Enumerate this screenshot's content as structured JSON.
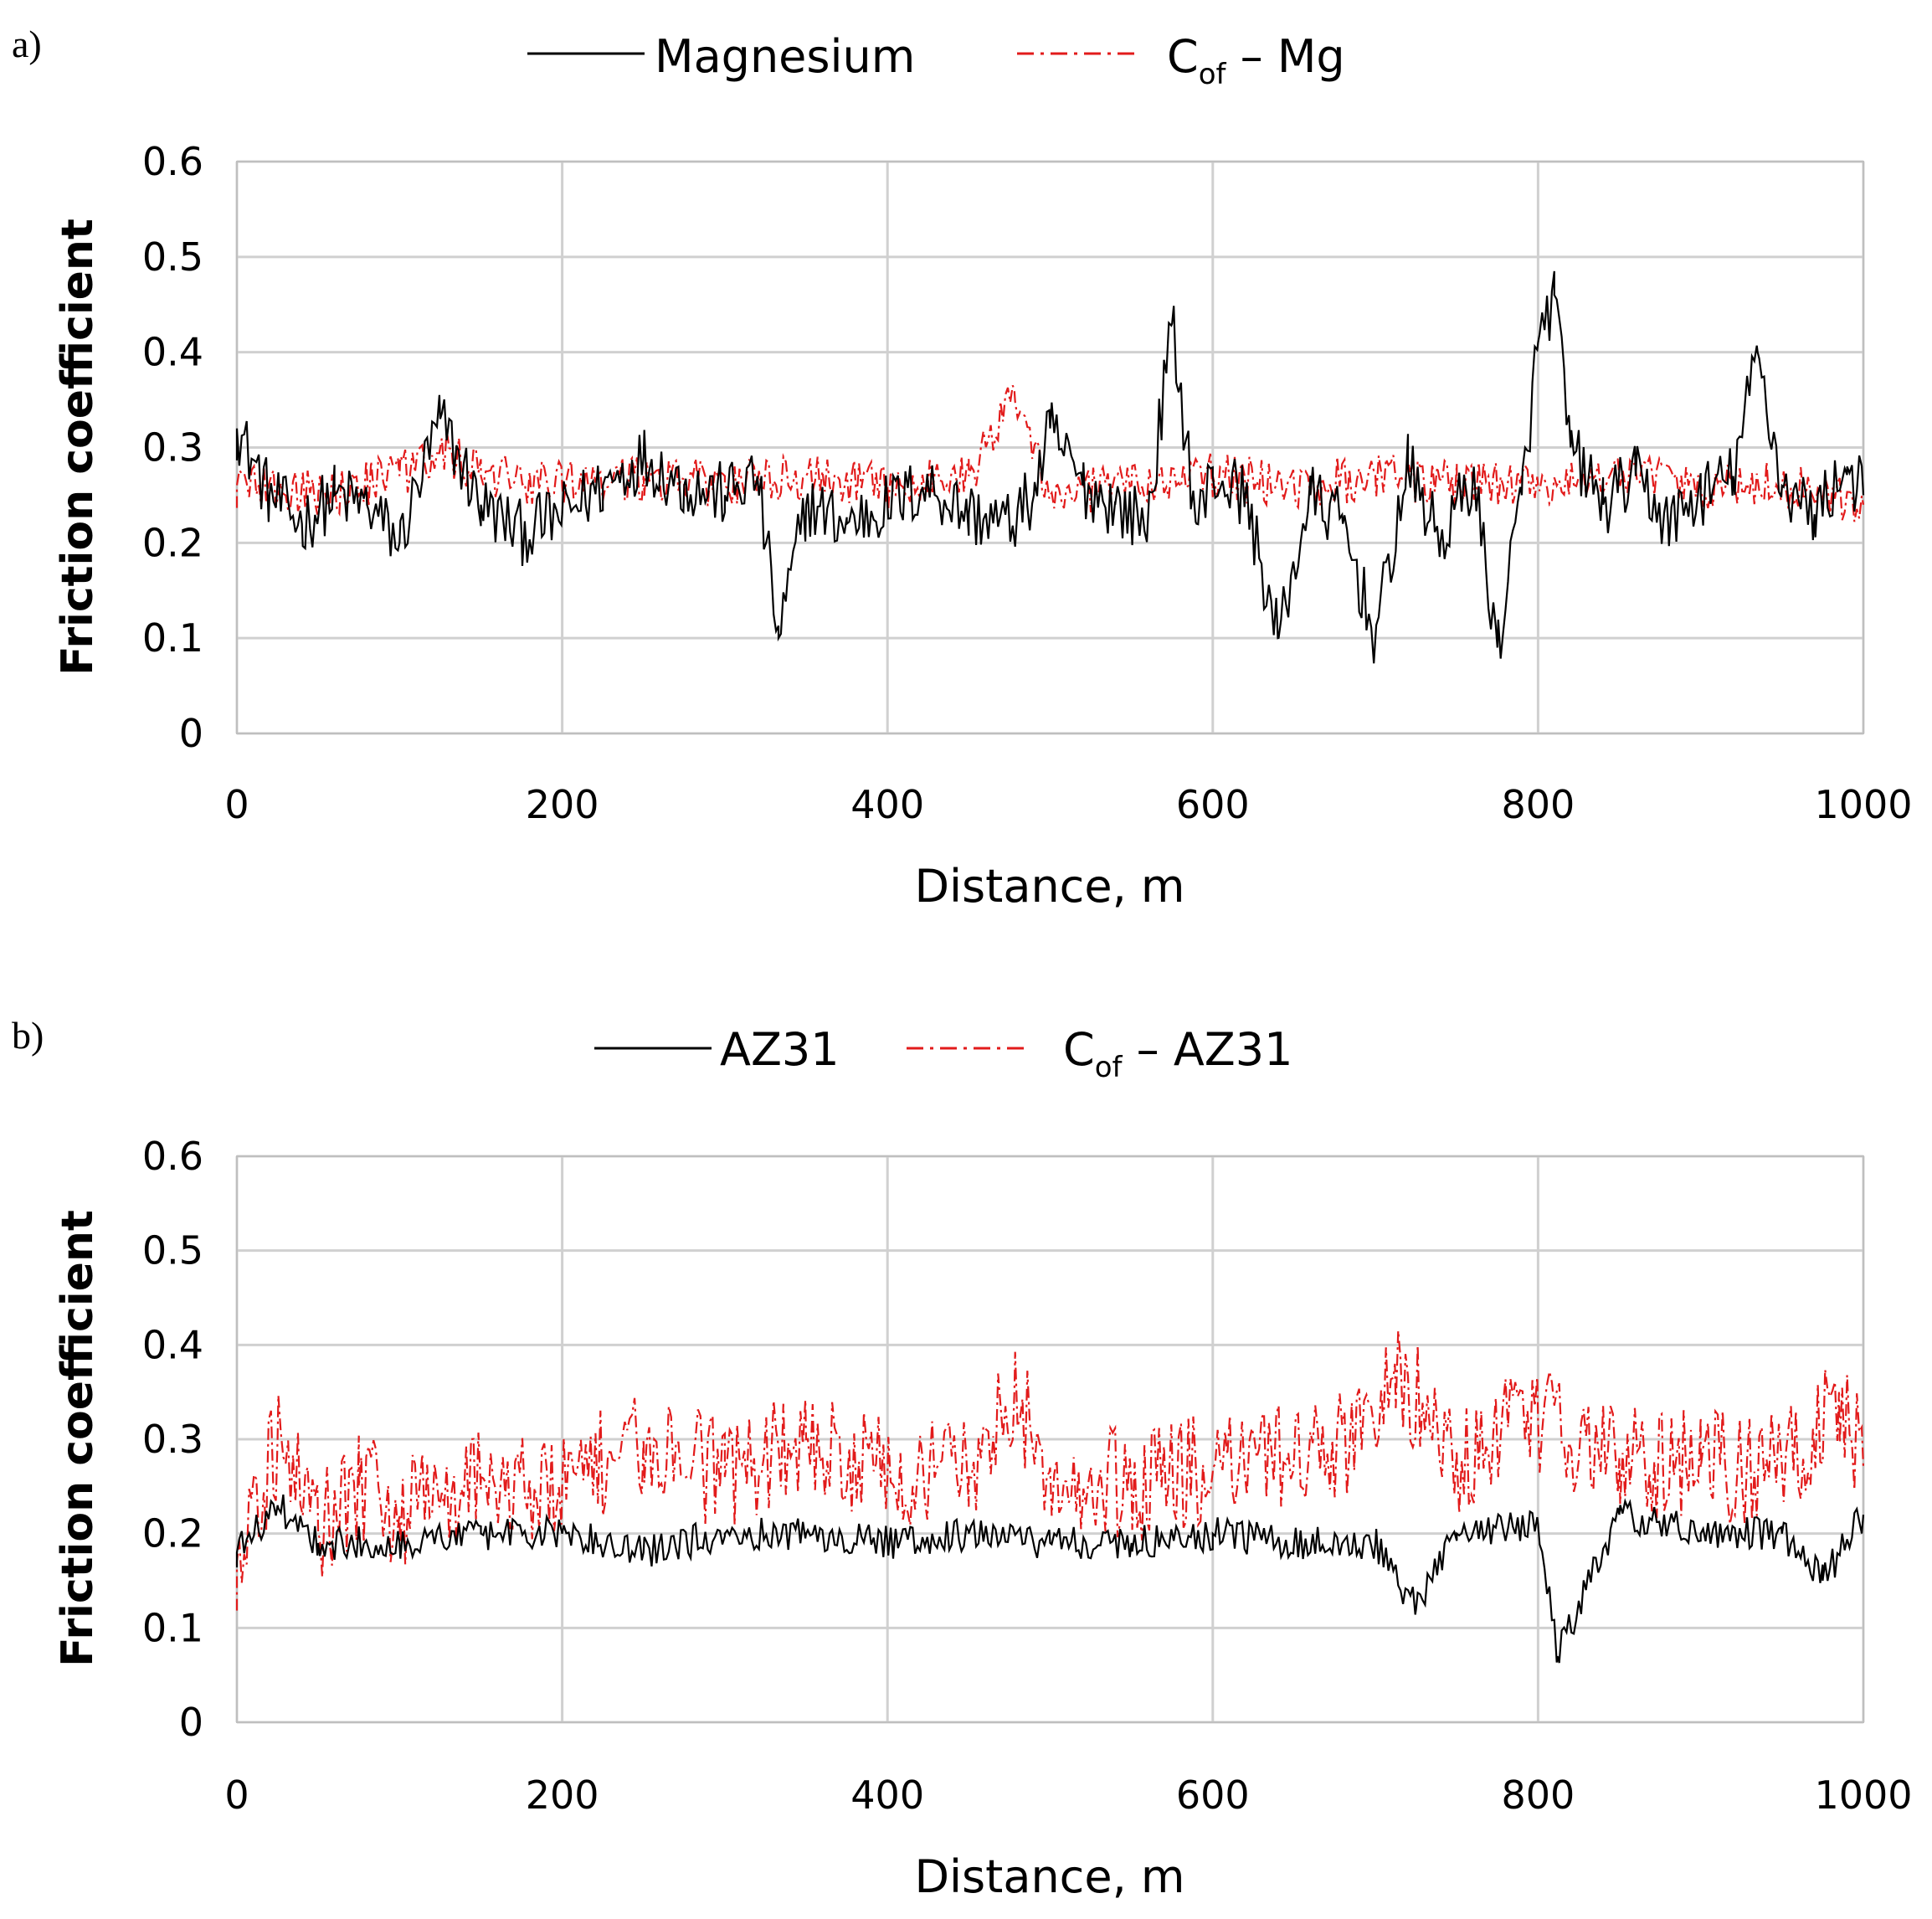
{
  "colors": {
    "series_black": "#000000",
    "series_red": "#e21b1b",
    "grid": "#d0d0d0"
  },
  "chart_data": [
    {
      "panel": "a)",
      "type": "line",
      "legend": {
        "series1": "Magnesium",
        "series2_main": "C",
        "series2_sub": "of",
        "series2_rest": " – Mg"
      },
      "xlabel": "Distance, m",
      "ylabel": "Friction coefficient",
      "xlim": [
        0,
        1000
      ],
      "ylim": [
        0,
        0.6
      ],
      "xticks": [
        "0",
        "200",
        "400",
        "600",
        "800",
        "1000"
      ],
      "yticks": [
        "0",
        "0.1",
        "0.2",
        "0.3",
        "0.4",
        "0.5",
        "0.6"
      ],
      "grid": true,
      "series": [
        {
          "name": "Magnesium",
          "style": "solid",
          "color": "#000000",
          "x": [
            0,
            20,
            40,
            60,
            80,
            100,
            125,
            150,
            175,
            200,
            225,
            250,
            275,
            300,
            320,
            333,
            350,
            375,
            400,
            425,
            450,
            475,
            490,
            500,
            520,
            540,
            560,
            575,
            590,
            600,
            620,
            640,
            660,
            680,
            700,
            720,
            740,
            760,
            775,
            790,
            800,
            810,
            820,
            840,
            860,
            880,
            900,
            920,
            935,
            950,
            970,
            990,
            1000
          ],
          "y": [
            0.32,
            0.25,
            0.22,
            0.25,
            0.24,
            0.2,
            0.33,
            0.24,
            0.21,
            0.23,
            0.26,
            0.29,
            0.26,
            0.25,
            0.27,
            0.1,
            0.24,
            0.22,
            0.24,
            0.26,
            0.23,
            0.22,
            0.25,
            0.32,
            0.26,
            0.24,
            0.22,
            0.43,
            0.22,
            0.27,
            0.25,
            0.1,
            0.25,
            0.22,
            0.1,
            0.28,
            0.2,
            0.27,
            0.09,
            0.25,
            0.41,
            0.46,
            0.3,
            0.24,
            0.27,
            0.22,
            0.25,
            0.27,
            0.4,
            0.26,
            0.23,
            0.28,
            0.25
          ]
        },
        {
          "name": "Cof – Mg",
          "style": "dash-dot",
          "color": "#e21b1b",
          "x": [
            0,
            50,
            100,
            125,
            150,
            200,
            250,
            300,
            350,
            400,
            450,
            478,
            500,
            550,
            600,
            650,
            700,
            750,
            800,
            850,
            900,
            950,
            1000
          ],
          "y": [
            0.26,
            0.25,
            0.27,
            0.3,
            0.27,
            0.26,
            0.27,
            0.26,
            0.27,
            0.26,
            0.27,
            0.36,
            0.25,
            0.26,
            0.27,
            0.26,
            0.27,
            0.26,
            0.26,
            0.27,
            0.26,
            0.26,
            0.24
          ]
        }
      ]
    },
    {
      "panel": "b)",
      "type": "line",
      "legend": {
        "series1": "AZ31",
        "series2_main": "C",
        "series2_sub": "of",
        "series2_rest": " – AZ31"
      },
      "xlabel": "Distance, m",
      "ylabel": "Friction coefficient",
      "xlim": [
        0,
        1000
      ],
      "ylim": [
        0,
        0.6
      ],
      "xticks": [
        "0",
        "200",
        "400",
        "600",
        "800",
        "1000"
      ],
      "yticks": [
        "0",
        "0.1",
        "0.2",
        "0.3",
        "0.4",
        "0.5",
        "0.6"
      ],
      "grid": true,
      "series": [
        {
          "name": "AZ31",
          "style": "solid",
          "color": "#000000",
          "x": [
            0,
            25,
            50,
            100,
            150,
            200,
            250,
            300,
            350,
            400,
            450,
            500,
            550,
            600,
            650,
            700,
            725,
            750,
            800,
            812,
            850,
            900,
            950,
            975,
            1000
          ],
          "y": [
            0.18,
            0.23,
            0.19,
            0.19,
            0.2,
            0.2,
            0.18,
            0.2,
            0.2,
            0.19,
            0.2,
            0.19,
            0.19,
            0.2,
            0.19,
            0.19,
            0.12,
            0.2,
            0.21,
            0.07,
            0.22,
            0.2,
            0.2,
            0.15,
            0.22
          ]
        },
        {
          "name": "Cof – AZ31",
          "style": "dash-dot",
          "color": "#e21b1b",
          "x": [
            0,
            25,
            50,
            75,
            100,
            150,
            200,
            250,
            300,
            350,
            400,
            450,
            478,
            500,
            550,
            600,
            650,
            700,
            712,
            750,
            800,
            850,
            900,
            950,
            985,
            1000
          ],
          "y": [
            0.17,
            0.3,
            0.2,
            0.25,
            0.22,
            0.26,
            0.25,
            0.3,
            0.26,
            0.3,
            0.26,
            0.26,
            0.35,
            0.27,
            0.25,
            0.27,
            0.28,
            0.3,
            0.38,
            0.28,
            0.32,
            0.28,
            0.27,
            0.27,
            0.35,
            0.27
          ]
        }
      ]
    }
  ]
}
